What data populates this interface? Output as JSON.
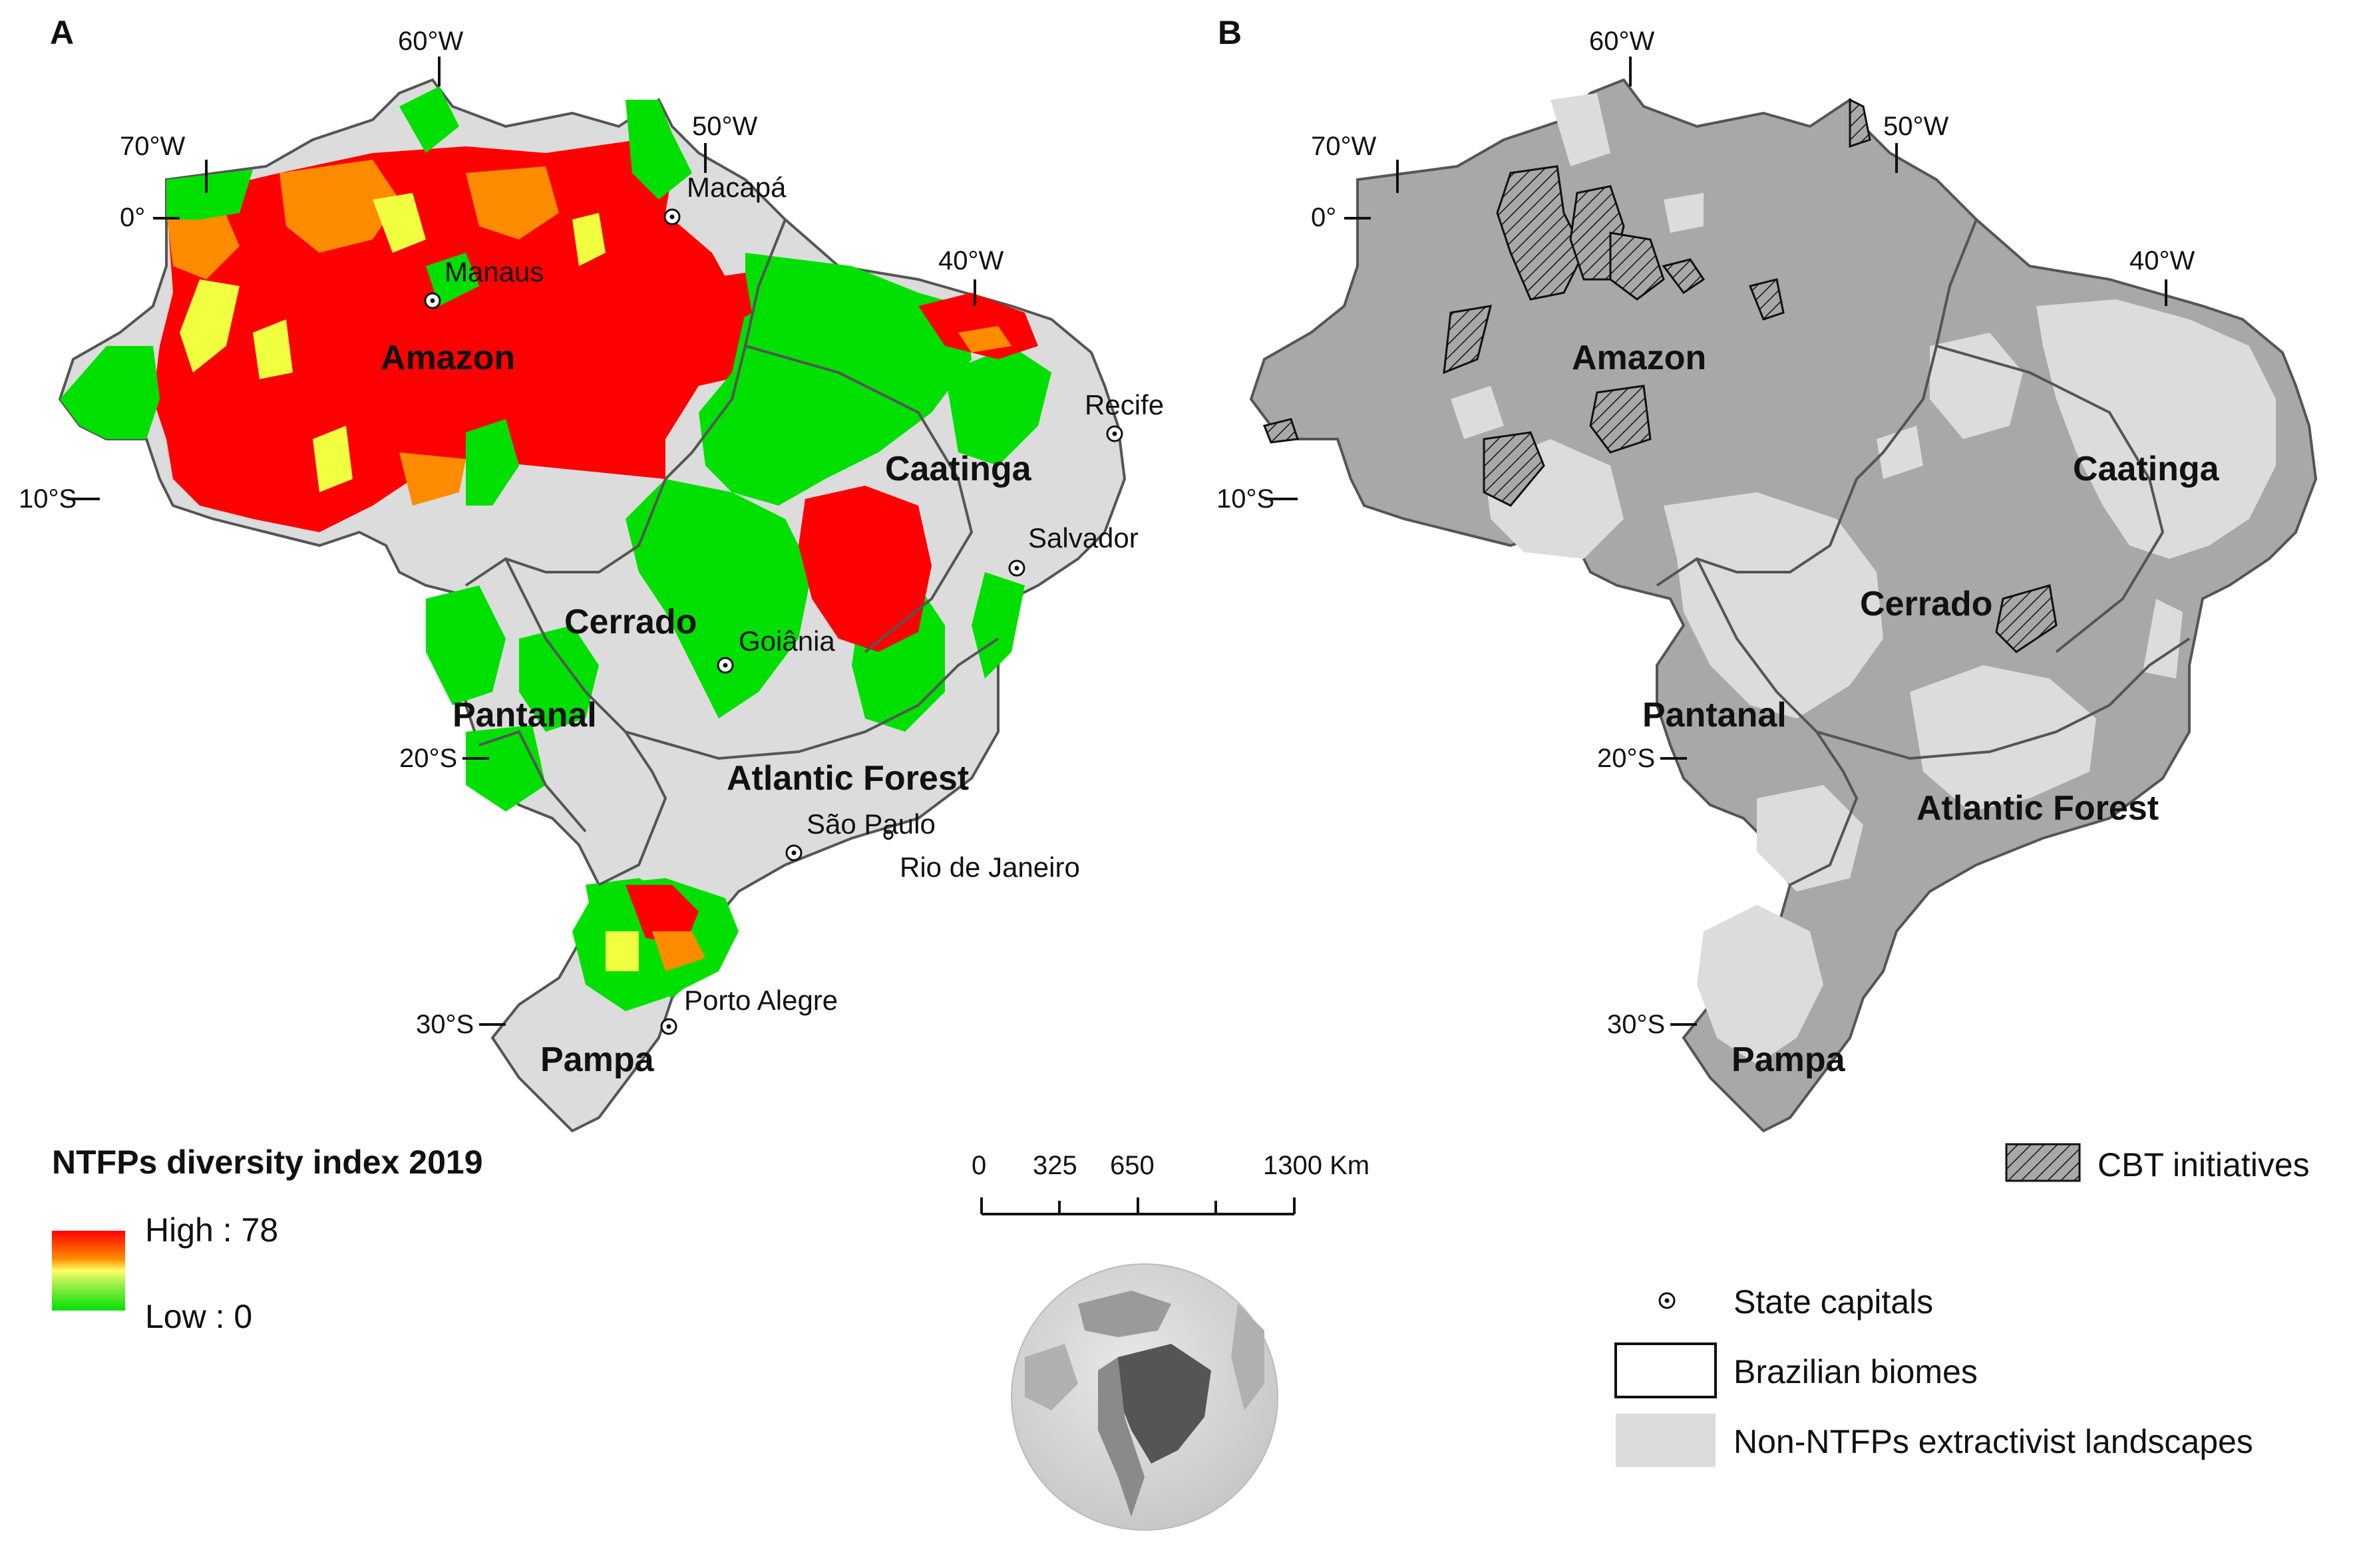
{
  "panels": {
    "a": {
      "label": "A",
      "biomes": {
        "amazon": "Amazon",
        "caatinga": "Caatinga",
        "cerrado": "Cerrado",
        "pantanal": "Pantanal",
        "atlantic_forest": "Atlantic Forest",
        "pampa": "Pampa"
      },
      "cities": {
        "macapa": "Macapá",
        "manaus": "Manaus",
        "recife": "Recife",
        "salvador": "Salvador",
        "goiania": "Goiânia",
        "sao_paulo": "São Paulo",
        "rio_de_janeiro": "Rio de Janeiro",
        "porto_alegre": "Porto Alegre"
      },
      "graticule": {
        "lon_60": "60°W",
        "lon_70": "70°W",
        "lon_50": "50°W",
        "lon_40": "40°W",
        "lat_0": "0°",
        "lat_10": "10°S",
        "lat_20": "20°S",
        "lat_30": "30°S"
      }
    },
    "b": {
      "label": "B",
      "biomes": {
        "amazon": "Amazon",
        "caatinga": "Caatinga",
        "cerrado": "Cerrado",
        "pantanal": "Pantanal",
        "atlantic_forest": "Atlantic Forest",
        "pampa": "Pampa"
      },
      "graticule": {
        "lon_60": "60°W",
        "lon_70": "70°W",
        "lon_50": "50°W",
        "lon_40": "40°W",
        "lat_0": "0°",
        "lat_10": "10°S",
        "lat_20": "20°S",
        "lat_30": "30°S"
      }
    }
  },
  "legend_a": {
    "title": "NTFPs diversity index 2019",
    "high_label": "High : 78",
    "low_label": "Low : 0",
    "high_value": 78,
    "low_value": 0,
    "colors": {
      "high": "#ff0000",
      "mid_high": "#ff8c00",
      "mid": "#ffff66",
      "low": "#00e000"
    }
  },
  "scale_bar": {
    "ticks": [
      "0",
      "325",
      "650",
      "1300 Km"
    ]
  },
  "legend_b": {
    "cbt": "CBT initiatives",
    "state_capitals": "State capitals",
    "biomes": "Brazilian biomes",
    "non_ntfp": "Non-NTFPs extractivist landscapes",
    "colors": {
      "landscape": "#a8a8a8",
      "non_ntfp": "#dcdcdc"
    }
  }
}
